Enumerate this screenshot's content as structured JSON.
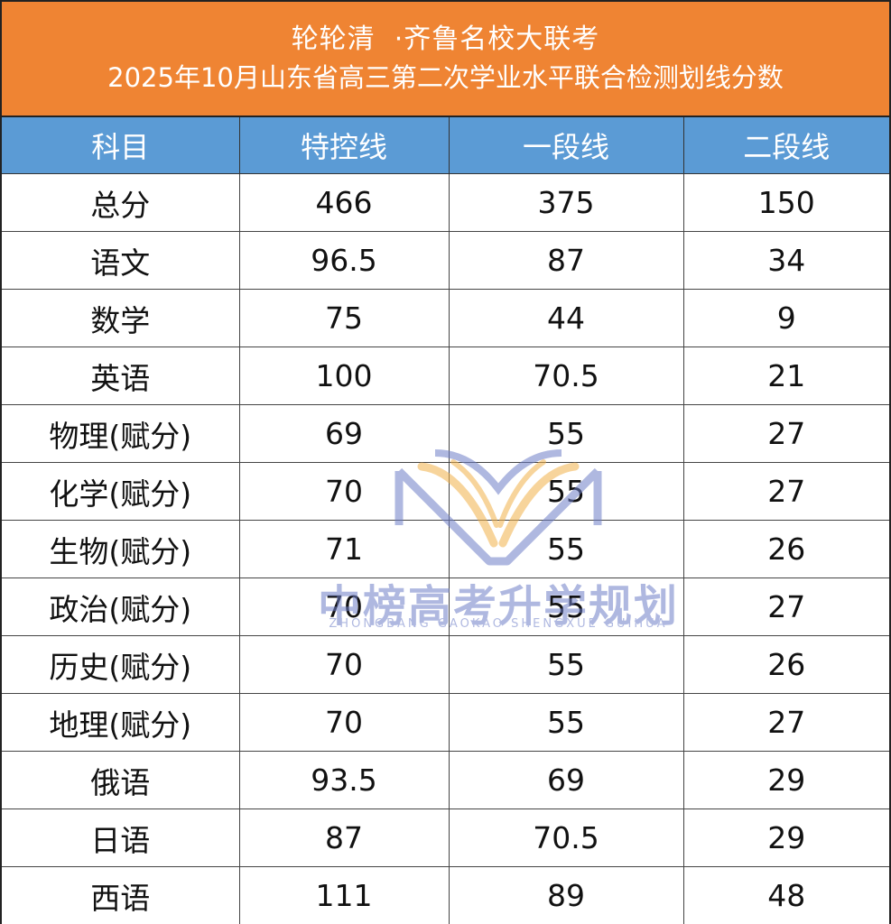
{
  "title": {
    "line1": "轮轮清  ·齐鲁名校大联考",
    "line2": "2025年10月山东省高三第二次学业水平联合检测划线分数"
  },
  "table": {
    "headers": [
      "科目",
      "特控线",
      "一段线",
      "二段线"
    ],
    "rows": [
      [
        "总分",
        "466",
        "375",
        "150"
      ],
      [
        "语文",
        "96.5",
        "87",
        "34"
      ],
      [
        "数学",
        "75",
        "44",
        "9"
      ],
      [
        "英语",
        "100",
        "70.5",
        "21"
      ],
      [
        "物理(赋分)",
        "69",
        "55",
        "27"
      ],
      [
        "化学(赋分)",
        "70",
        "55",
        "27"
      ],
      [
        "生物(赋分)",
        "71",
        "55",
        "26"
      ],
      [
        "政治(赋分)",
        "70",
        "55",
        "27"
      ],
      [
        "历史(赋分)",
        "70",
        "55",
        "26"
      ],
      [
        "地理(赋分)",
        "70",
        "55",
        "27"
      ],
      [
        "俄语",
        "93.5",
        "69",
        "29"
      ],
      [
        "日语",
        "87",
        "70.5",
        "29"
      ],
      [
        "西语",
        "111",
        "89",
        "48"
      ]
    ]
  },
  "watermark": {
    "name": "中榜高考升学规划",
    "pinyin": "ZHONGBANG GAOKAO SHENGXUE GUIHUA"
  },
  "colors": {
    "title_bg": "#ef8433",
    "header_bg": "#5b9bd5",
    "watermark": "#6f7fc8",
    "watermark_accent": "#f2b24a"
  }
}
